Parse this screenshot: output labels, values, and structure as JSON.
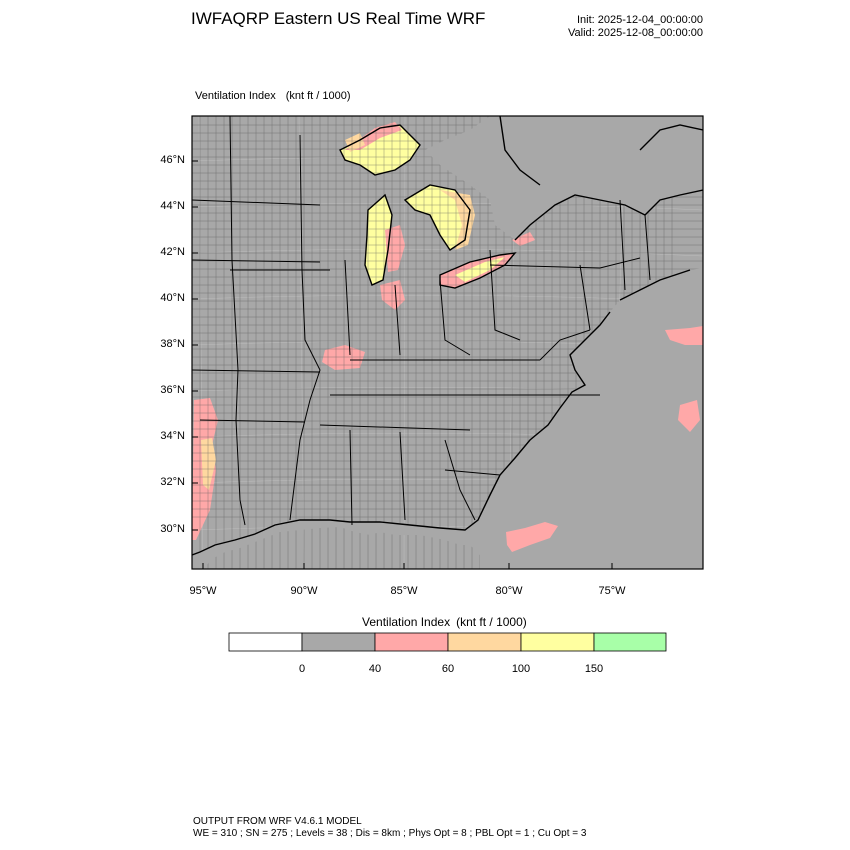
{
  "header": {
    "title": "IWFAQRP Eastern US Real Time WRF",
    "init": "Init: 2025-12-04_00:00:00",
    "valid": "Valid: 2025-12-08_00:00:00"
  },
  "map": {
    "field_name": "Ventilation Index",
    "field_units": "(knt ft / 1000)",
    "lat_labels": [
      "46°N",
      "44°N",
      "42°N",
      "40°N",
      "38°N",
      "36°N",
      "34°N",
      "32°N",
      "30°N"
    ],
    "lon_labels": [
      "95°W",
      "90°W",
      "85°W",
      "80°W",
      "75°W"
    ]
  },
  "legend": {
    "title": "Ventilation Index",
    "units": "(knt ft / 1000)",
    "colors": [
      "#ffffff",
      "#a8a8a8",
      "#ffa8a8",
      "#ffd8a0",
      "#ffffa0",
      "#a8ffa8"
    ],
    "labels": [
      "0",
      "40",
      "60",
      "100",
      "150"
    ]
  },
  "footer": {
    "line1": "OUTPUT FROM WRF V4.6.1 MODEL",
    "line2": "WE = 310 ; SN = 275 ; Levels = 38 ; Dis = 8km ; Phys Opt = 8 ; PBL Opt = 1 ; Cu Opt = 3"
  }
}
